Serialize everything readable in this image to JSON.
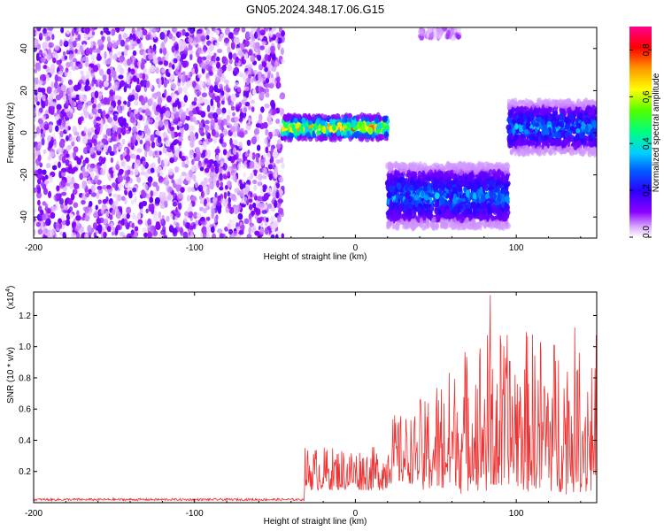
{
  "title": "GN05.2024.348.17.06.G15",
  "chart_data": [
    {
      "type": "heatmap",
      "xlabel": "Height of straight line (km)",
      "ylabel": "Frequency (Hz)",
      "xlim": [
        -200,
        150
      ],
      "ylim": [
        -50,
        50
      ],
      "xticks": [
        -200,
        -100,
        0,
        100
      ],
      "yticks": [
        -40,
        -20,
        0,
        20,
        40
      ],
      "colorbar": {
        "label": "Normalized spectral amplitude",
        "range": [
          0.0,
          0.9
        ],
        "ticks": [
          "0.0",
          "0.2",
          "0.4",
          "0.6",
          "0.8"
        ],
        "colors": [
          "#ffffff",
          "#b347ff",
          "#6a00ff",
          "#0000ff",
          "#00c8ff",
          "#00ff80",
          "#40ff00",
          "#ffff00",
          "#ff9900",
          "#ff0000",
          "#ff00a0"
        ]
      },
      "regions": [
        {
          "x": [
            -200,
            -45
          ],
          "freq": [
            -50,
            50
          ],
          "level": "noise",
          "amplitude": [
            0.0,
            0.15
          ]
        },
        {
          "x": [
            -45,
            20
          ],
          "freq": [
            -3,
            8
          ],
          "level": "signal",
          "amplitude": [
            0.2,
            0.9
          ]
        },
        {
          "x": [
            20,
            95
          ],
          "freq": [
            -45,
            -15
          ],
          "level": "signal",
          "amplitude": [
            0.1,
            0.4
          ]
        },
        {
          "x": [
            95,
            150
          ],
          "freq": [
            -10,
            15
          ],
          "level": "signal",
          "amplitude": [
            0.1,
            0.4
          ]
        },
        {
          "x": [
            40,
            65
          ],
          "freq": [
            45,
            50
          ],
          "level": "weak",
          "amplitude": [
            0.0,
            0.1
          ]
        }
      ]
    },
    {
      "type": "line",
      "xlabel": "Height of straight line (km)",
      "ylabel": "SNR (10 * v/v)",
      "y_multiplier": "(x10",
      "y_multiplier_exp": "4",
      "y_multiplier_close": ")",
      "xlim": [
        -200,
        150
      ],
      "ylim": [
        0,
        1.35
      ],
      "xticks": [
        -200,
        -100,
        0,
        100
      ],
      "yticks": [
        "0.2",
        "0.4",
        "0.6",
        "0.8",
        "1.0",
        "1.2"
      ],
      "color": "#ee3333",
      "segments": [
        {
          "x": [
            -200,
            -32
          ],
          "baseline": 0.02,
          "amplitude": 0.015
        },
        {
          "x": [
            -32,
            20
          ],
          "baseline": 0.08,
          "amplitude": 0.28
        },
        {
          "x": [
            20,
            40
          ],
          "baseline": 0.12,
          "amplitude": 0.45
        },
        {
          "x": [
            40,
            150
          ],
          "baseline": 0.05,
          "amplitude": 1.0
        }
      ],
      "peak": {
        "x": 84,
        "y": 1.33
      }
    }
  ]
}
